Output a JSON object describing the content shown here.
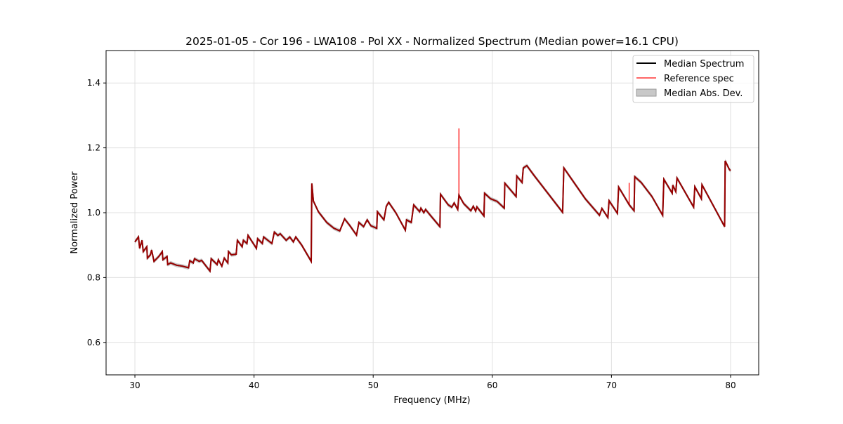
{
  "chart_data": {
    "type": "line",
    "title": "2025-01-05 - Cor 196 - LWA108 - Pol XX - Normalized Spectrum (Median power=16.1 CPU)",
    "xlabel": "Frequency (MHz)",
    "ylabel": "Normalized Power",
    "xlim": [
      27.58,
      82.36
    ],
    "ylim": [
      0.5,
      1.5
    ],
    "xticks": [
      30,
      40,
      50,
      60,
      70,
      80
    ],
    "xtick_labels": [
      "30",
      "40",
      "50",
      "60",
      "70",
      "80"
    ],
    "yticks": [
      0.6,
      0.8,
      1.0,
      1.2,
      1.4
    ],
    "ytick_labels": [
      "0.6",
      "0.8",
      "1.0",
      "1.2",
      "1.4"
    ],
    "grid": true,
    "legend": {
      "placement": "top-right",
      "entries": [
        "Median Spectrum",
        "Reference spec",
        "Median Abs. Dev."
      ]
    },
    "colors": {
      "median": "#000000",
      "reference": "#ff0000",
      "mad": "#b0b0b0"
    },
    "mad_halfwidth": 0.006,
    "median": {
      "x": [
        30.0,
        30.3,
        30.4,
        30.6,
        30.7,
        31.0,
        31.05,
        31.3,
        31.4,
        31.6,
        32.0,
        32.3,
        32.35,
        32.7,
        32.75,
        33.0,
        33.5,
        34.0,
        34.5,
        34.6,
        34.9,
        35.0,
        35.4,
        35.6,
        36.3,
        36.4,
        36.9,
        37.0,
        37.3,
        37.5,
        37.8,
        37.85,
        38.1,
        38.5,
        38.6,
        39.0,
        39.1,
        39.4,
        39.5,
        40.2,
        40.3,
        40.7,
        40.8,
        41.5,
        41.7,
        42.0,
        42.2,
        42.7,
        43.0,
        43.3,
        43.5,
        44.0,
        44.8,
        44.85,
        44.98,
        45.4,
        46.1,
        46.7,
        47.2,
        47.6,
        48.05,
        48.6,
        48.8,
        49.2,
        49.5,
        49.8,
        50.3,
        50.35,
        50.9,
        51.1,
        51.3,
        51.9,
        52.7,
        52.8,
        53.2,
        53.4,
        53.9,
        54.0,
        54.25,
        54.4,
        54.8,
        55.6,
        55.65,
        56.3,
        56.6,
        56.8,
        57.1,
        57.2,
        57.6,
        58.2,
        58.4,
        58.6,
        58.7,
        59.3,
        59.35,
        59.85,
        60.4,
        61.0,
        61.05,
        62.0,
        62.05,
        62.5,
        62.6,
        62.9,
        63.5,
        65.9,
        66.0,
        67.8,
        69.0,
        69.2,
        69.7,
        69.8,
        70.5,
        70.6,
        71.5,
        71.9,
        71.95,
        72.5,
        73.4,
        74.3,
        74.4,
        75.1,
        75.15,
        75.4,
        75.5,
        76.9,
        77.0,
        77.55,
        77.6,
        78.4,
        79.5,
        79.55,
        79.9,
        80.0
      ],
      "y": [
        0.91,
        0.925,
        0.89,
        0.915,
        0.88,
        0.895,
        0.86,
        0.87,
        0.885,
        0.85,
        0.865,
        0.88,
        0.855,
        0.865,
        0.84,
        0.845,
        0.838,
        0.835,
        0.83,
        0.852,
        0.845,
        0.858,
        0.85,
        0.853,
        0.82,
        0.858,
        0.84,
        0.855,
        0.835,
        0.86,
        0.845,
        0.88,
        0.87,
        0.872,
        0.915,
        0.895,
        0.915,
        0.905,
        0.93,
        0.89,
        0.92,
        0.905,
        0.925,
        0.905,
        0.94,
        0.93,
        0.935,
        0.915,
        0.925,
        0.91,
        0.925,
        0.9,
        0.85,
        1.09,
        1.036,
        1.003,
        0.97,
        0.952,
        0.944,
        0.981,
        0.96,
        0.931,
        0.97,
        0.957,
        0.978,
        0.96,
        0.952,
        1.003,
        0.978,
        1.02,
        1.032,
        1.0,
        0.946,
        0.978,
        0.97,
        1.024,
        1.003,
        1.014,
        1.0,
        1.01,
        0.992,
        0.957,
        1.057,
        1.024,
        1.017,
        1.03,
        1.01,
        1.054,
        1.028,
        1.006,
        1.02,
        1.005,
        1.018,
        0.99,
        1.06,
        1.043,
        1.035,
        1.014,
        1.091,
        1.05,
        1.113,
        1.093,
        1.138,
        1.145,
        1.115,
        1.001,
        1.138,
        1.043,
        0.992,
        1.013,
        0.985,
        1.037,
        0.998,
        1.079,
        1.024,
        1.006,
        1.111,
        1.093,
        1.05,
        0.992,
        1.103,
        1.06,
        1.085,
        1.065,
        1.107,
        1.017,
        1.08,
        1.043,
        1.086,
        1.032,
        0.957,
        1.16,
        1.133,
        1.13
      ]
    },
    "reference_spikes": [
      {
        "x": 57.2,
        "y": 1.26
      },
      {
        "x": 71.5,
        "y": 1.092
      }
    ]
  }
}
